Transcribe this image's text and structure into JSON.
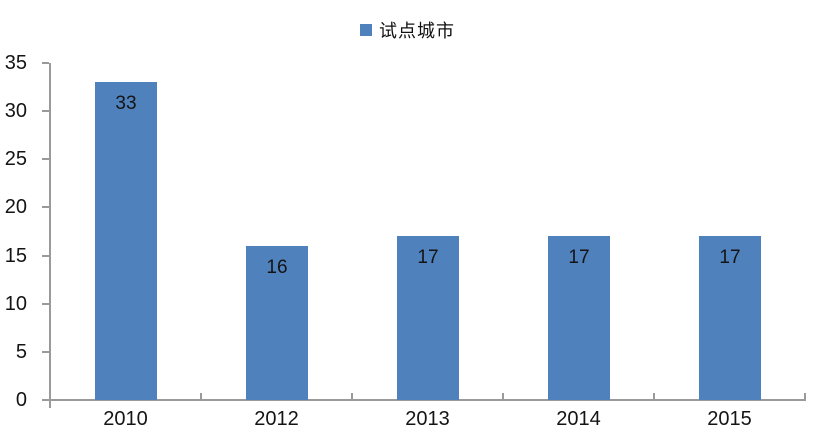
{
  "chart_data": {
    "type": "bar",
    "categories": [
      "2010",
      "2012",
      "2013",
      "2014",
      "2015"
    ],
    "values": [
      33,
      16,
      17,
      17,
      17
    ],
    "series": [
      {
        "name": "试点城市",
        "values": [
          33,
          16,
          17,
          17,
          17
        ]
      }
    ],
    "legend": {
      "label": "试点城市",
      "position": "top-center"
    },
    "title": "",
    "xlabel": "",
    "ylabel": "",
    "ylim": [
      0,
      35
    ],
    "yticks": [
      0,
      5,
      10,
      15,
      20,
      25,
      30,
      35
    ],
    "grid": false,
    "data_labels": "inside-end",
    "bar_color": "#4F81BD",
    "axis_color": "#9A9A9A",
    "text_color": "#141414"
  }
}
